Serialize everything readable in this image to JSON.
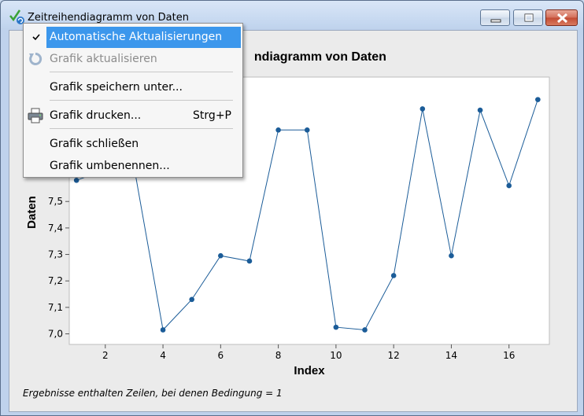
{
  "window": {
    "title": "Zeitreihendiagramm von Daten",
    "controls": [
      "minimize",
      "maximize",
      "close"
    ]
  },
  "menu": {
    "items": [
      {
        "label": "Automatische Aktualisierungen",
        "checked": true,
        "highlighted": true,
        "shortcut": ""
      },
      {
        "label": "Grafik aktualisieren",
        "disabled": true,
        "icon": "refresh-icon",
        "shortcut": ""
      },
      {
        "label": "Grafik speichern unter...",
        "shortcut": ""
      },
      {
        "label": "Grafik drucken...",
        "icon": "printer-icon",
        "shortcut": "Strg+P"
      },
      {
        "label": "Grafik schließen",
        "shortcut": ""
      },
      {
        "label": "Grafik umbenennen...",
        "shortcut": ""
      }
    ]
  },
  "graph": {
    "title_visible": "ndiagramm von Daten",
    "footnote": "Ergebnisse enthalten Zeilen, bei denen Bedingung = 1"
  },
  "chart_data": {
    "type": "line",
    "title": "Zeitreihendiagramm von Daten",
    "xlabel": "Index",
    "ylabel": "Daten",
    "x": [
      1,
      2,
      3,
      4,
      5,
      6,
      7,
      8,
      9,
      10,
      11,
      12,
      13,
      14,
      15,
      16,
      17
    ],
    "values": [
      7.58,
      7.62,
      7.63,
      7.015,
      7.13,
      7.295,
      7.275,
      7.77,
      7.77,
      7.025,
      7.015,
      7.22,
      7.85,
      7.295,
      7.845,
      7.56,
      7.885
    ],
    "xticks": [
      "2",
      "4",
      "6",
      "8",
      "10",
      "12",
      "14",
      "16"
    ],
    "yticks": [
      "7,0",
      "7,1",
      "7,2",
      "7,3",
      "7,4",
      "7,5"
    ],
    "xlim": [
      0.75,
      17.4
    ],
    "ylim": [
      6.96,
      7.97
    ],
    "grid": false,
    "markers": "circle",
    "line_color": "#1b5c98"
  }
}
